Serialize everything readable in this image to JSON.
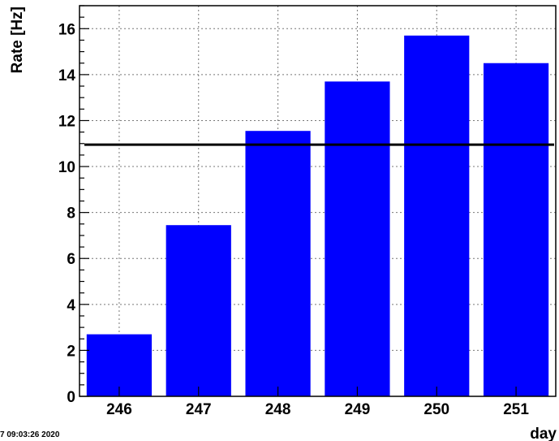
{
  "chart_data": {
    "type": "bar",
    "categories": [
      "246",
      "247",
      "248",
      "249",
      "250",
      "251"
    ],
    "values": [
      2.7,
      7.45,
      11.55,
      13.7,
      15.7,
      14.5
    ],
    "series": [
      {
        "values": [
          2.7,
          7.45,
          11.55,
          13.7,
          15.7,
          14.5
        ]
      }
    ],
    "xlabel": "day",
    "ylabel": "Rate [Hz]",
    "ylim": [
      0,
      17
    ],
    "yticks": [
      0,
      2,
      4,
      6,
      8,
      10,
      12,
      14,
      16
    ],
    "reference_line": 10.95,
    "grid": true,
    "bar_color": "#0000ff",
    "line_color": "#000000"
  },
  "footer": {
    "timestamp": "7 09:03:26 2020"
  }
}
